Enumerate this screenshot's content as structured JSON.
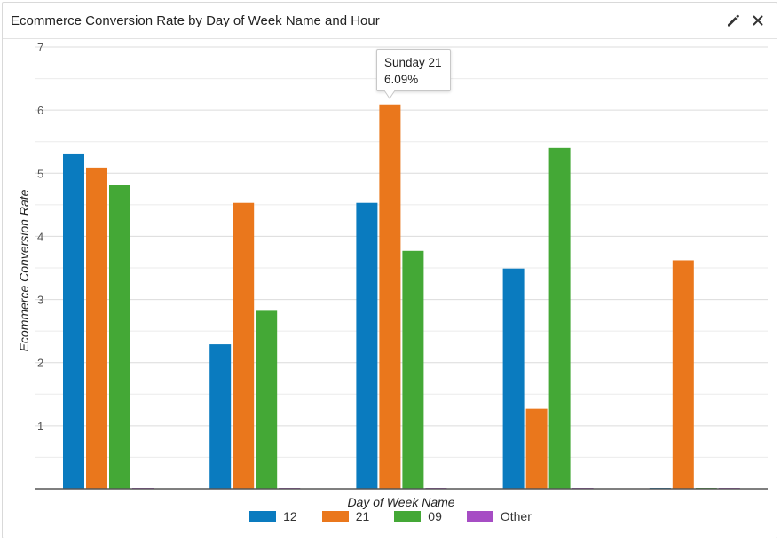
{
  "widget": {
    "title": "Ecommerce Conversion Rate by Day of Week Name and Hour"
  },
  "icons": {
    "edit": "pencil-icon",
    "close": "close-icon"
  },
  "tooltip": {
    "line1": "Sunday 21",
    "line2": "6.09%"
  },
  "chart_data": {
    "type": "bar",
    "xlabel": "Day of Week Name",
    "ylabel": "Ecommerce Conversion Rate",
    "ylim": [
      0,
      7
    ],
    "yticks": [
      1,
      2,
      3,
      4,
      5,
      6,
      7
    ],
    "grid": true,
    "legend_position": "bottom",
    "categories": [
      "",
      "",
      "",
      "",
      ""
    ],
    "series": [
      {
        "name": "12",
        "color": "#0a7bbf",
        "values": [
          5.3,
          2.29,
          4.53,
          3.49,
          0
        ]
      },
      {
        "name": "21",
        "color": "#ea771c",
        "values": [
          5.09,
          4.53,
          6.09,
          1.27,
          3.62
        ]
      },
      {
        "name": "09",
        "color": "#44a836",
        "values": [
          4.82,
          2.82,
          3.77,
          5.4,
          0
        ]
      },
      {
        "name": "Other",
        "color": "#a64dc4",
        "values": [
          0,
          0,
          0,
          0,
          0
        ]
      }
    ]
  }
}
